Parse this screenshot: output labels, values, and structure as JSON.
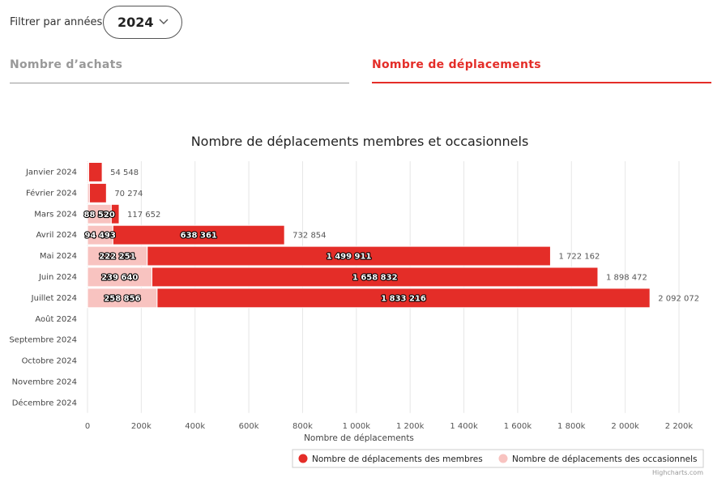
{
  "filter": {
    "label": "Filtrer par années",
    "selected": "2024"
  },
  "tabs": [
    {
      "label": "Nombre d’achats",
      "active": false
    },
    {
      "label": "Nombre de déplacements",
      "active": true
    }
  ],
  "credits": "Highcharts.com",
  "chart_data": {
    "type": "bar",
    "stacked": true,
    "orientation": "horizontal",
    "title": "Nombre de déplacements membres et occasionnels",
    "xlabel": "Nombre de déplacements",
    "categories": [
      "Janvier 2024",
      "Février 2024",
      "Mars 2024",
      "Avril 2024",
      "Mai 2024",
      "Juin 2024",
      "Juillet 2024",
      "Août 2024",
      "Septembre 2024",
      "Octobre 2024",
      "Novembre 2024",
      "Décembre 2024"
    ],
    "series": [
      {
        "name": "Nombre de déplacements des membres",
        "color": "#e42d28",
        "values": [
          50000,
          63000,
          29132,
          638361,
          1499911,
          1658832,
          1833216,
          null,
          null,
          null,
          null,
          null
        ],
        "labels": [
          "",
          "",
          "",
          "638 361",
          "1 499 911",
          "1 658 832",
          "1 833 216",
          "",
          "",
          "",
          "",
          ""
        ]
      },
      {
        "name": "Nombre de déplacements des occasionnels",
        "color": "#f8c3c0",
        "values": [
          4548,
          7274,
          88520,
          94493,
          222251,
          239640,
          258856,
          null,
          null,
          null,
          null,
          null
        ],
        "labels": [
          "",
          "",
          "88 520",
          "94 493",
          "222 251",
          "239 640",
          "258 856",
          "",
          "",
          "",
          "",
          ""
        ]
      }
    ],
    "totals": [
      "54 548",
      "70 274",
      "117 652",
      "732 854",
      "1 722 162",
      "1 898 472",
      "2 092 072",
      "",
      "",
      "",
      "",
      ""
    ],
    "xlim": [
      0,
      2200000
    ],
    "ticks": [
      0,
      200000,
      400000,
      600000,
      800000,
      1000000,
      1200000,
      1400000,
      1600000,
      1800000,
      2000000,
      2200000
    ],
    "tick_labels": [
      "0",
      "200k",
      "400k",
      "600k",
      "800k",
      "1 000k",
      "1 200k",
      "1 400k",
      "1 600k",
      "1 800k",
      "2 000k",
      "2 200k"
    ],
    "grid": true,
    "legend_position": "bottom-right"
  }
}
